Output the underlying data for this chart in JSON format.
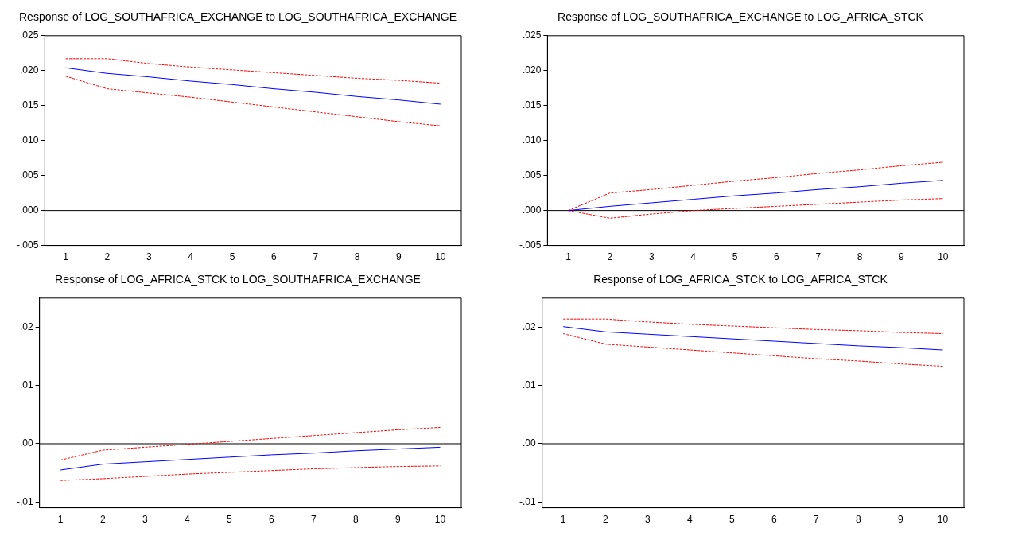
{
  "chart_data": [
    {
      "type": "line",
      "title": "Response of LOG_SOUTHAFRICA_EXCHANGE to LOG_SOUTHAFRICA_EXCHANGE",
      "categories": [
        "1",
        "2",
        "3",
        "4",
        "5",
        "6",
        "7",
        "8",
        "9",
        "10"
      ],
      "ylim": [
        -0.005,
        0.025
      ],
      "yticks": [
        {
          "value": -0.005,
          "label": "-.005"
        },
        {
          "value": 0,
          "label": ".000"
        },
        {
          "value": 0.005,
          "label": ".005"
        },
        {
          "value": 0.01,
          "label": ".010"
        },
        {
          "value": 0.015,
          "label": ".015"
        },
        {
          "value": 0.02,
          "label": ".020"
        },
        {
          "value": 0.025,
          "label": ".025"
        }
      ],
      "grid": false,
      "legend": false,
      "ref_lines": [
        {
          "axis": "y",
          "value": 0,
          "color": "#000000"
        }
      ],
      "series": [
        {
          "color": "#0000ff",
          "line_style": "solid",
          "values": [
            0.0204,
            0.0196,
            0.0191,
            0.0185,
            0.018,
            0.0174,
            0.0169,
            0.0163,
            0.0158,
            0.0152
          ]
        },
        {
          "color": "#ff0000",
          "line_style": "dashed",
          "values": [
            0.0217,
            0.0217,
            0.021,
            0.0205,
            0.0201,
            0.0197,
            0.0193,
            0.0189,
            0.0186,
            0.0182
          ]
        },
        {
          "color": "#ff0000",
          "line_style": "dashed",
          "values": [
            0.0192,
            0.0174,
            0.0168,
            0.0162,
            0.0155,
            0.0148,
            0.0141,
            0.0134,
            0.0127,
            0.0121
          ]
        }
      ]
    },
    {
      "type": "line",
      "title": "Response of LOG_SOUTHAFRICA_EXCHANGE to LOG_AFRICA_STCK",
      "categories": [
        "1",
        "2",
        "3",
        "4",
        "5",
        "6",
        "7",
        "8",
        "9",
        "10"
      ],
      "ylim": [
        -0.005,
        0.025
      ],
      "yticks": [
        {
          "value": -0.005,
          "label": "-.005"
        },
        {
          "value": 0,
          "label": ".000"
        },
        {
          "value": 0.005,
          "label": ".005"
        },
        {
          "value": 0.01,
          "label": ".010"
        },
        {
          "value": 0.015,
          "label": ".015"
        },
        {
          "value": 0.02,
          "label": ".020"
        },
        {
          "value": 0.025,
          "label": ".025"
        }
      ],
      "grid": false,
      "legend": false,
      "ref_lines": [
        {
          "axis": "y",
          "value": 0,
          "color": "#000000"
        }
      ],
      "series": [
        {
          "color": "#0000ff",
          "line_style": "solid",
          "values": [
            0,
            0.0006,
            0.0011,
            0.0016,
            0.0021,
            0.0025,
            0.003,
            0.0034,
            0.0039,
            0.0043
          ]
        },
        {
          "color": "#ff0000",
          "line_style": "dashed",
          "values": [
            0,
            0.0025,
            0.003,
            0.0036,
            0.0042,
            0.0047,
            0.0053,
            0.0058,
            0.0064,
            0.0069
          ]
        },
        {
          "color": "#ff0000",
          "line_style": "dashed",
          "values": [
            0,
            -0.0011,
            -0.0005,
            0,
            0.0003,
            0.0006,
            0.0009,
            0.0012,
            0.0015,
            0.0017
          ]
        }
      ]
    },
    {
      "type": "line",
      "title": "Response of LOG_AFRICA_STCK to LOG_SOUTHAFRICA_EXCHANGE",
      "categories": [
        "1",
        "2",
        "3",
        "4",
        "5",
        "6",
        "7",
        "8",
        "9",
        "10"
      ],
      "ylim": [
        -0.011,
        0.025
      ],
      "yticks": [
        {
          "value": -0.01,
          "label": "-.01"
        },
        {
          "value": 0,
          "label": ".00"
        },
        {
          "value": 0.01,
          "label": ".01"
        },
        {
          "value": 0.02,
          "label": ".02"
        }
      ],
      "grid": false,
      "legend": false,
      "ref_lines": [
        {
          "axis": "y",
          "value": 0,
          "color": "#000000"
        }
      ],
      "series": [
        {
          "color": "#0000ff",
          "line_style": "solid",
          "values": [
            -0.0045,
            -0.0035,
            -0.0031,
            -0.0027,
            -0.0023,
            -0.0019,
            -0.0016,
            -0.0012,
            -0.0009,
            -0.0006
          ]
        },
        {
          "color": "#ff0000",
          "line_style": "dashed",
          "values": [
            -0.0028,
            -0.0011,
            -0.0006,
            -0.0001,
            0.0004,
            0.0009,
            0.0014,
            0.0019,
            0.0024,
            0.0028
          ]
        },
        {
          "color": "#ff0000",
          "line_style": "dashed",
          "values": [
            -0.0063,
            -0.006,
            -0.0056,
            -0.0052,
            -0.0049,
            -0.0046,
            -0.0043,
            -0.0041,
            -0.0039,
            -0.0038
          ]
        }
      ]
    },
    {
      "type": "line",
      "title": "Response of LOG_AFRICA_STCK to LOG_AFRICA_STCK",
      "categories": [
        "1",
        "2",
        "3",
        "4",
        "5",
        "6",
        "7",
        "8",
        "9",
        "10"
      ],
      "ylim": [
        -0.011,
        0.025
      ],
      "yticks": [
        {
          "value": -0.01,
          "label": "-.01"
        },
        {
          "value": 0,
          "label": ".00"
        },
        {
          "value": 0.01,
          "label": ".01"
        },
        {
          "value": 0.02,
          "label": ".02"
        }
      ],
      "grid": false,
      "legend": false,
      "ref_lines": [
        {
          "axis": "y",
          "value": 0,
          "color": "#000000"
        }
      ],
      "series": [
        {
          "color": "#0000ff",
          "line_style": "solid",
          "values": [
            0.0201,
            0.0192,
            0.0188,
            0.0184,
            0.018,
            0.0176,
            0.0172,
            0.0168,
            0.0165,
            0.0161
          ]
        },
        {
          "color": "#ff0000",
          "line_style": "dashed",
          "values": [
            0.0214,
            0.0214,
            0.0209,
            0.0205,
            0.0202,
            0.0199,
            0.0196,
            0.0194,
            0.0191,
            0.0189
          ]
        },
        {
          "color": "#ff0000",
          "line_style": "dashed",
          "values": [
            0.0189,
            0.0171,
            0.0166,
            0.0161,
            0.0156,
            0.0151,
            0.0146,
            0.0142,
            0.0137,
            0.0133
          ]
        }
      ]
    }
  ]
}
